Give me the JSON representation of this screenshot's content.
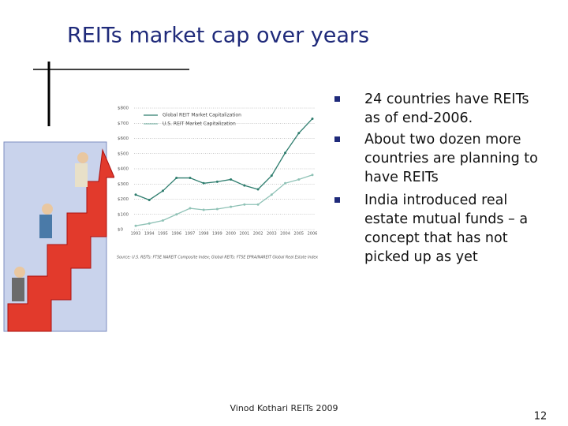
{
  "title": "REITs market cap over years",
  "bullets": [
    {
      "lines": [
        "24 countries have REITs",
        "as of end-2006."
      ]
    },
    {
      "lines": [
        "About two dozen more",
        "countries are planning to",
        "have REITs"
      ]
    },
    {
      "lines": [
        "India introduced real",
        "estate mutual funds – a",
        "concept that has not",
        "picked up as yet"
      ]
    }
  ],
  "footer": "Vinod Kothari REITs 2009",
  "page_number": "12",
  "chart_data": {
    "type": "line",
    "categories": [
      "1993",
      "1994",
      "1995",
      "1996",
      "1997",
      "1998",
      "1999",
      "2000",
      "2001",
      "2002",
      "2003",
      "2004",
      "2005",
      "2006"
    ],
    "series": [
      {
        "name": "Global REIT Market Capitalization",
        "color": "#2e7d6e",
        "values": [
          230,
          195,
          255,
          340,
          340,
          305,
          315,
          330,
          290,
          265,
          355,
          505,
          635,
          730
        ]
      },
      {
        "name": "U.S. REIT Market Capitalization",
        "color": "#8fc2b6",
        "values": [
          25,
          40,
          60,
          100,
          140,
          130,
          135,
          150,
          165,
          165,
          230,
          305,
          330,
          360
        ]
      }
    ],
    "ylim": [
      0,
      800
    ],
    "yticks": [
      {
        "value": 0,
        "label": "$0"
      },
      {
        "value": 100,
        "label": "$100"
      },
      {
        "value": 200,
        "label": "$200"
      },
      {
        "value": 300,
        "label": "$300"
      },
      {
        "value": 400,
        "label": "$400"
      },
      {
        "value": 500,
        "label": "$500"
      },
      {
        "value": 600,
        "label": "$600"
      },
      {
        "value": 700,
        "label": "$700"
      },
      {
        "value": 800,
        "label": "$800"
      }
    ],
    "grid": true,
    "source": "Source: U.S. REITs: FTSE NAREIT Composite Index; Global REITs: FTSE EPRA/NAREIT Global Real Estate Index"
  }
}
